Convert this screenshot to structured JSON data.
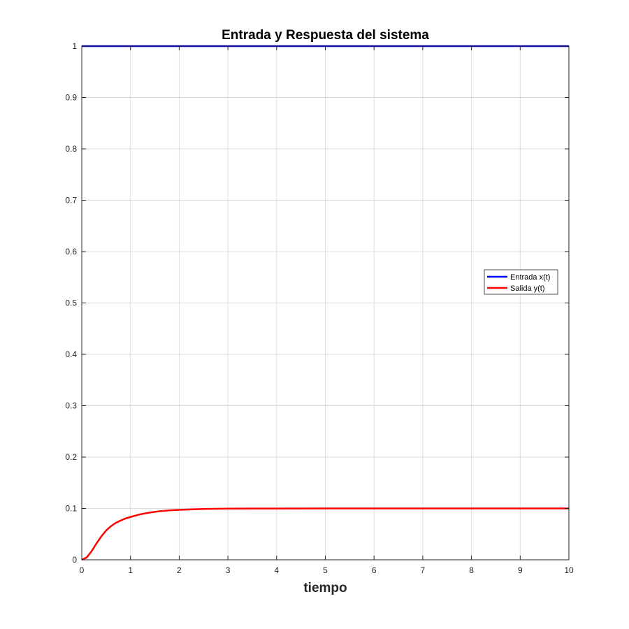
{
  "chart_data": {
    "type": "line",
    "title": "Entrada y Respuesta del sistema",
    "xlabel": "tiempo",
    "ylabel": "",
    "xlim": [
      0,
      10
    ],
    "ylim": [
      0,
      1
    ],
    "xticks": [
      "0",
      "1",
      "2",
      "3",
      "4",
      "5",
      "6",
      "7",
      "8",
      "9",
      "10"
    ],
    "yticks": [
      "0",
      "0.1",
      "0.2",
      "0.3",
      "0.4",
      "0.5",
      "0.6",
      "0.7",
      "0.8",
      "0.9",
      "1"
    ],
    "grid": true,
    "legend_position": "right-middle",
    "series": [
      {
        "name": "Entrada x(t)",
        "color": "#0000ff",
        "x": [
          0,
          10
        ],
        "y": [
          1,
          1
        ]
      },
      {
        "name": "Salida y(t)",
        "color": "#ff0000",
        "x": [
          0,
          0.1,
          0.2,
          0.3,
          0.4,
          0.5,
          0.6,
          0.7,
          0.8,
          0.9,
          1.0,
          1.2,
          1.4,
          1.6,
          1.8,
          2.0,
          2.5,
          3.0,
          3.5,
          4.0,
          5.0,
          6.0,
          7.0,
          8.0,
          9.0,
          10.0
        ],
        "y": [
          0,
          0.0045,
          0.0165,
          0.0315,
          0.0455,
          0.057,
          0.0655,
          0.072,
          0.0765,
          0.0805,
          0.0835,
          0.0885,
          0.092,
          0.0945,
          0.0962,
          0.0973,
          0.0989,
          0.0996,
          0.0998,
          0.0999,
          0.1,
          0.1,
          0.1,
          0.1,
          0.1,
          0.1
        ]
      }
    ]
  }
}
